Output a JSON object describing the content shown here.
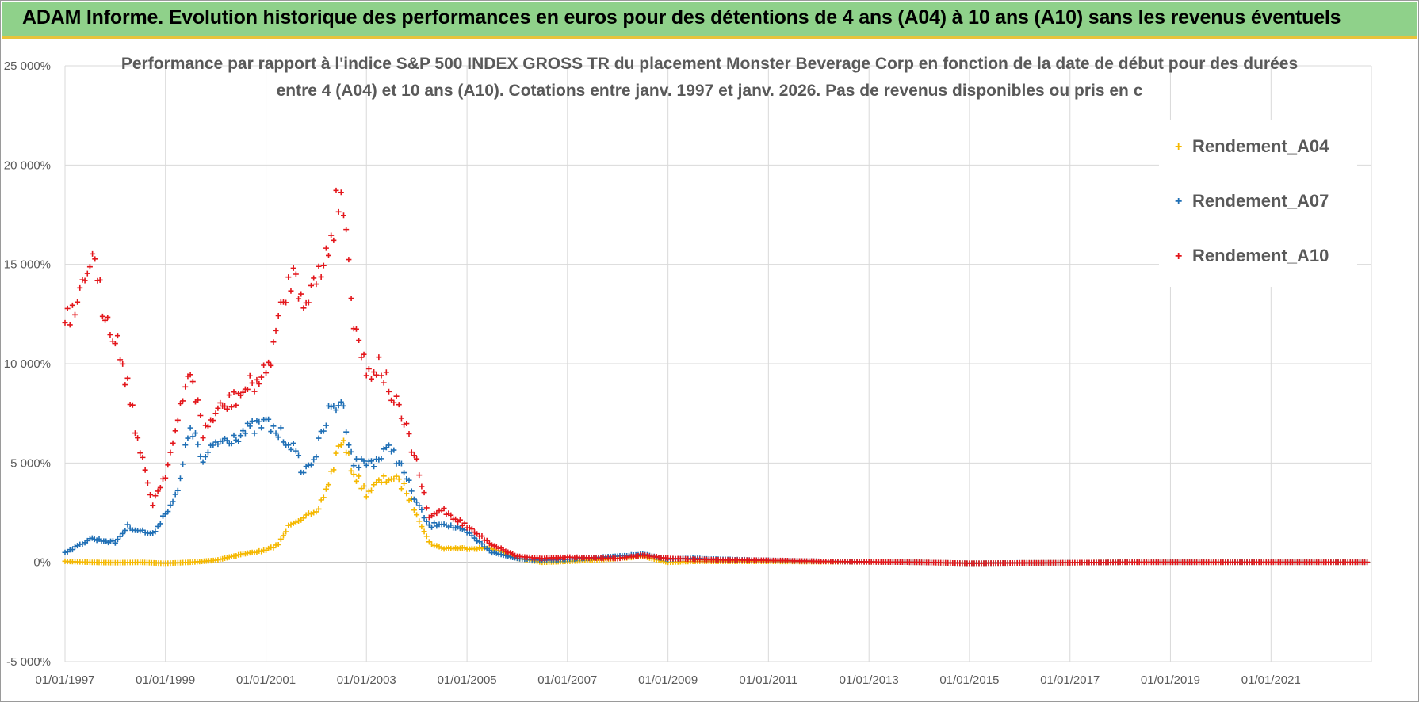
{
  "header": {
    "banner_title": "ADAM Informe. Evolution historique des performances en euros pour des détentions de 4 ans (A04) à 10 ans (A10) sans les revenus éventuels"
  },
  "chart_data": {
    "type": "scatter",
    "title_line1": "Performance par rapport à l'indice S&P 500 INDEX GROSS TR  du placement Monster Beverage Corp en fonction de la date de début pour des durées",
    "title_line2": "entre 4 (A04) et 10 ans (A10). Cotations entre janv. 1997 et janv. 2026. Pas de revenus disponibles ou pris en c",
    "xlabel": "",
    "ylabel": "",
    "x_range": [
      "1997-01-01",
      "2023-01-01"
    ],
    "ylim": [
      -5000,
      25000
    ],
    "y_ticks": [
      -5000,
      0,
      5000,
      10000,
      15000,
      20000,
      25000
    ],
    "y_tick_labels": [
      "-5 000%",
      "0%",
      "5 000%",
      "10 000%",
      "15 000%",
      "20 000%",
      "25 000%"
    ],
    "x_ticks": [
      "1997-01-01",
      "1999-01-01",
      "2001-01-01",
      "2003-01-01",
      "2005-01-01",
      "2007-01-01",
      "2009-01-01",
      "2011-01-01",
      "2013-01-01",
      "2015-01-01",
      "2017-01-01",
      "2019-01-01",
      "2021-01-01"
    ],
    "x_tick_labels": [
      "01/01/1997",
      "01/01/1999",
      "01/01/2001",
      "01/01/2003",
      "01/01/2005",
      "01/01/2007",
      "01/01/2009",
      "01/01/2011",
      "01/01/2013",
      "01/01/2015",
      "01/01/2017",
      "01/01/2019",
      "01/01/2021"
    ],
    "grid": true,
    "legend_position": "top-right",
    "series": [
      {
        "name": "Rendement_A04",
        "color": "#f5b800",
        "x": [
          "1997-01-01",
          "1997-07-01",
          "1998-01-01",
          "1998-07-01",
          "1999-01-01",
          "1999-07-01",
          "2000-01-01",
          "2000-07-01",
          "2001-01-01",
          "2001-04-01",
          "2001-07-01",
          "2001-10-01",
          "2002-01-01",
          "2002-04-01",
          "2002-07-01",
          "2002-10-01",
          "2003-01-01",
          "2003-04-01",
          "2003-07-01",
          "2003-10-01",
          "2004-01-01",
          "2004-04-01",
          "2004-07-01",
          "2005-01-01",
          "2005-07-01",
          "2006-01-01",
          "2006-07-01",
          "2007-01-01",
          "2007-07-01",
          "2008-01-01",
          "2008-07-01",
          "2009-01-01",
          "2009-07-01",
          "2010-01-01",
          "2011-01-01",
          "2012-01-01",
          "2013-01-01",
          "2014-01-01",
          "2015-01-01",
          "2016-01-01",
          "2017-01-01",
          "2018-01-01",
          "2019-01-01",
          "2020-01-01",
          "2021-01-01",
          "2022-01-01",
          "2022-12-01"
        ],
        "y": [
          50,
          0,
          -20,
          0,
          -50,
          0,
          100,
          400,
          600,
          900,
          2000,
          2300,
          2400,
          4000,
          6200,
          4500,
          3500,
          4000,
          4300,
          3800,
          2500,
          1000,
          700,
          700,
          700,
          200,
          0,
          50,
          100,
          200,
          300,
          0,
          50,
          50,
          50,
          30,
          20,
          0,
          -50,
          -30,
          -20,
          0,
          0,
          0,
          0,
          0,
          0
        ]
      },
      {
        "name": "Rendement_A07",
        "color": "#1f6fb5",
        "x": [
          "1997-01-01",
          "1997-04-01",
          "1997-07-01",
          "1998-01-01",
          "1998-04-01",
          "1998-07-01",
          "1998-10-01",
          "1999-01-01",
          "1999-04-01",
          "1999-07-01",
          "1999-10-01",
          "2000-01-01",
          "2000-07-01",
          "2001-01-01",
          "2001-04-01",
          "2001-07-01",
          "2001-10-01",
          "2002-01-01",
          "2002-04-01",
          "2002-07-01",
          "2002-10-01",
          "2003-01-01",
          "2003-04-01",
          "2003-07-01",
          "2003-10-01",
          "2004-01-01",
          "2004-04-01",
          "2004-07-01",
          "2005-01-01",
          "2005-07-01",
          "2006-01-01",
          "2006-07-01",
          "2007-01-01",
          "2008-01-01",
          "2008-07-01",
          "2009-01-01",
          "2009-07-01",
          "2010-01-01",
          "2011-01-01",
          "2012-01-01",
          "2013-01-01",
          "2014-01-01",
          "2015-01-01",
          "2016-01-01",
          "2017-01-01",
          "2018-01-01",
          "2019-01-01",
          "2020-01-01",
          "2021-01-01",
          "2022-01-01",
          "2022-12-01"
        ],
        "y": [
          500,
          800,
          1200,
          1000,
          1800,
          1600,
          1400,
          2500,
          3500,
          7000,
          5000,
          6000,
          6500,
          7000,
          6500,
          6000,
          4500,
          5500,
          7500,
          8200,
          5000,
          5000,
          5200,
          5800,
          4500,
          3000,
          1800,
          2000,
          1500,
          500,
          200,
          100,
          150,
          300,
          400,
          150,
          200,
          150,
          100,
          50,
          20,
          0,
          -50,
          -30,
          -20,
          0,
          0,
          0,
          0,
          0,
          0
        ]
      },
      {
        "name": "Rendement_A10",
        "color": "#e3161b",
        "x": [
          "1997-01-01",
          "1997-04-01",
          "1997-07-01",
          "1997-10-01",
          "1998-01-01",
          "1998-04-01",
          "1998-07-01",
          "1998-10-01",
          "1999-01-01",
          "1999-04-01",
          "1999-07-01",
          "1999-10-01",
          "2000-01-01",
          "2000-07-01",
          "2001-01-01",
          "2001-04-01",
          "2001-07-01",
          "2001-10-01",
          "2002-01-01",
          "2002-04-01",
          "2002-07-01",
          "2002-10-01",
          "2003-01-01",
          "2003-04-01",
          "2003-07-01",
          "2003-10-01",
          "2004-01-01",
          "2004-04-01",
          "2004-07-01",
          "2005-01-01",
          "2005-07-01",
          "2006-01-01",
          "2006-07-01",
          "2007-01-01",
          "2008-01-01",
          "2008-07-01",
          "2009-01-01",
          "2009-07-01",
          "2010-01-01",
          "2011-01-01",
          "2012-01-01",
          "2013-01-01",
          "2014-01-01",
          "2015-01-01",
          "2016-01-01",
          "2017-01-01",
          "2018-01-01",
          "2019-01-01",
          "2020-01-01",
          "2021-01-01",
          "2022-01-01",
          "2022-12-01"
        ],
        "y": [
          12000,
          12500,
          15500,
          13000,
          11500,
          9000,
          5500,
          3000,
          4500,
          7000,
          9800,
          6500,
          7500,
          8500,
          9500,
          12000,
          14500,
          13500,
          14000,
          16000,
          19000,
          12500,
          9500,
          10000,
          8500,
          7000,
          5000,
          2200,
          2700,
          1800,
          900,
          300,
          200,
          250,
          200,
          350,
          200,
          150,
          120,
          100,
          50,
          20,
          0,
          -50,
          -30,
          -20,
          0,
          0,
          0,
          0,
          0,
          0
        ]
      }
    ]
  }
}
